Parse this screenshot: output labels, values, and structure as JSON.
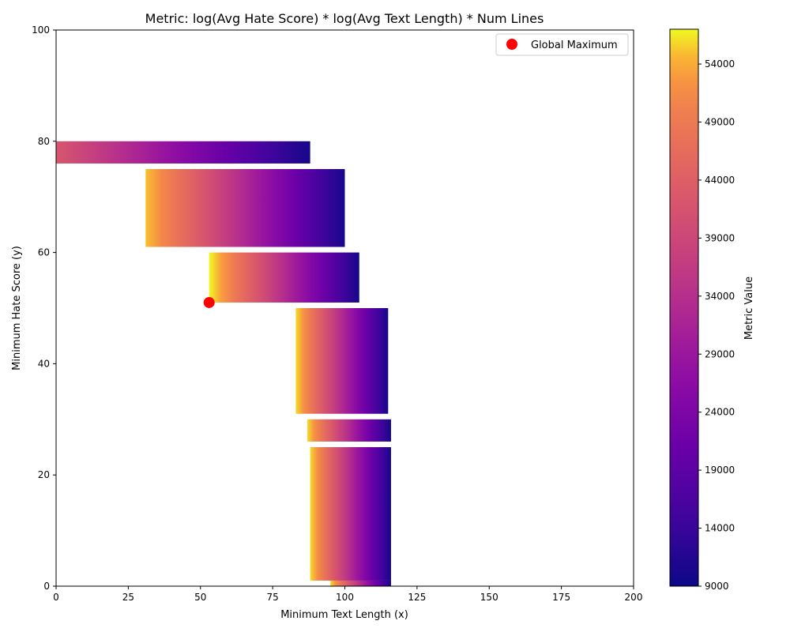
{
  "chart_data": {
    "type": "heatmap",
    "title": "Metric: log(Avg Hate Score) * log(Avg Text Length) * Num Lines",
    "xlabel": "Minimum Text Length (x)",
    "ylabel": "Minimum Hate Score (y)",
    "xlim": [
      0,
      200
    ],
    "ylim": [
      0,
      100
    ],
    "xticks": [
      0,
      25,
      50,
      75,
      100,
      125,
      150,
      175,
      200
    ],
    "yticks": [
      0,
      20,
      40,
      60,
      80,
      100
    ],
    "grid": false,
    "colormap": "plasma",
    "colorbar": {
      "label": "Metric Value",
      "min": 9000,
      "max": 57000,
      "ticks": [
        9000,
        14000,
        19000,
        24000,
        29000,
        34000,
        39000,
        44000,
        49000,
        54000
      ]
    },
    "regions": [
      {
        "y_range": [
          76,
          80
        ],
        "x_start": 0,
        "x_end": 88,
        "value_start": 42000,
        "value_end": 10000
      },
      {
        "y_range": [
          61,
          75
        ],
        "x_start": 31,
        "x_end": 100,
        "value_start": 55000,
        "value_end": 10000
      },
      {
        "y_range": [
          51,
          60
        ],
        "x_start": 53,
        "x_end": 105,
        "value_start": 57000,
        "value_end": 10000
      },
      {
        "y_range": [
          31,
          50
        ],
        "x_start": 83,
        "x_end": 115,
        "value_start": 56000,
        "value_end": 10000
      },
      {
        "y_range": [
          26,
          30
        ],
        "x_start": 87,
        "x_end": 116,
        "value_start": 56000,
        "value_end": 10000
      },
      {
        "y_range": [
          1,
          25
        ],
        "x_start": 88,
        "x_end": 116,
        "value_start": 56000,
        "value_end": 10000
      },
      {
        "y_range": [
          0,
          1
        ],
        "x_start": 95,
        "x_end": 116,
        "value_start": 56000,
        "value_end": 10000
      }
    ],
    "markers": [
      {
        "label": "Global Maximum",
        "x": 53,
        "y": 51,
        "color": "#ff0000"
      }
    ],
    "legend": {
      "position": "top-right",
      "entries": [
        "Global Maximum"
      ]
    }
  }
}
